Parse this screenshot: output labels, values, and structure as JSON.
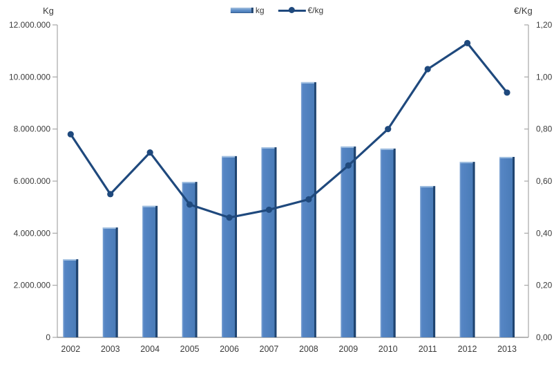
{
  "chart_data": {
    "type": "combo",
    "categories": [
      "2002",
      "2003",
      "2004",
      "2005",
      "2006",
      "2007",
      "2008",
      "2009",
      "2010",
      "2011",
      "2012",
      "2013"
    ],
    "series": [
      {
        "name": "kg",
        "type": "bar",
        "axis": "left",
        "values": [
          3000000,
          4220000,
          5050000,
          5970000,
          6960000,
          7300000,
          9800000,
          7330000,
          7250000,
          5810000,
          6740000,
          6930000
        ]
      },
      {
        "name": "€/kg",
        "type": "line",
        "axis": "right",
        "values": [
          0.78,
          0.55,
          0.71,
          0.51,
          0.46,
          0.49,
          0.53,
          0.66,
          0.8,
          1.03,
          1.13,
          0.94
        ]
      }
    ],
    "left_axis": {
      "title": "Kg",
      "min": 0,
      "max": 12000000,
      "step": 2000000,
      "tick_labels": [
        "0",
        "2.000.000",
        "4.000.000",
        "6.000.000",
        "8.000.000",
        "10.000.000",
        "12.000.000"
      ]
    },
    "right_axis": {
      "title": "€/Kg",
      "min": 0,
      "max": 1.2,
      "step": 0.2,
      "tick_labels": [
        "0,00",
        "0,20",
        "0,40",
        "0,60",
        "0,80",
        "1,00",
        "1,20"
      ]
    },
    "legend": {
      "position": "top-center",
      "entries": [
        "kg",
        "€/kg"
      ]
    },
    "grid": false,
    "colors": {
      "bar_fill": "#5585c4",
      "bar_fill_light": "#7ca3d3",
      "bar_edge_dark": "#1f4470",
      "bar_top_cap": "#9fbee0",
      "line": "#1f497d",
      "axis_line": "#a6a6a6",
      "text": "#3b3b3b"
    }
  }
}
